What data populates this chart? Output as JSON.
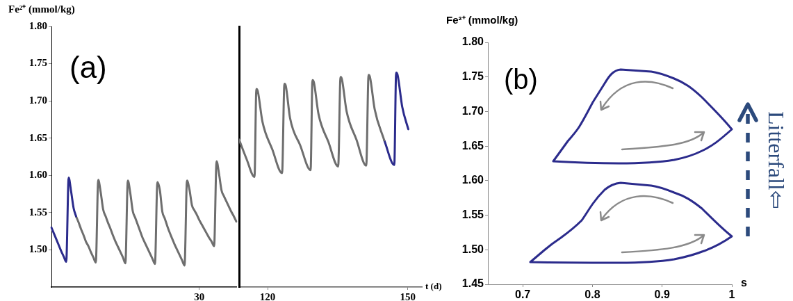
{
  "chart_data": [
    {
      "type": "line",
      "ylabel": "Fe²⁺ (mmol/kg)",
      "annotations": [
        "(a)"
      ],
      "categories": [
        null,
        null,
        null,
        null,
        null,
        null,
        null,
        null,
        null,
        null,
        null,
        null,
        null,
        null,
        null,
        null,
        null,
        null,
        null,
        null,
        null,
        null,
        null,
        null,
        null,
        null,
        null,
        null,
        null,
        null,
        null,
        null,
        null,
        null,
        null,
        null,
        null,
        null,
        null,
        null,
        null,
        null,
        null,
        null,
        null,
        null,
        null,
        null,
        null,
        null,
        null,
        null,
        null,
        null,
        null,
        null,
        null,
        null,
        null,
        null,
        "30",
        null,
        null,
        null,
        null,
        null,
        null,
        null,
        null,
        null,
        null,
        null,
        null,
        null,
        null,
        null
      ],
      "ylim": [
        1.45,
        1.8
      ],
      "yticks": [
        {
          "value": 1.5,
          "label": "1.50"
        },
        {
          "value": 1.55,
          "label": "1.55"
        },
        {
          "value": 1.6,
          "label": "1.60"
        },
        {
          "value": 1.65,
          "label": "1.65"
        },
        {
          "value": 1.7,
          "label": "1.70"
        },
        {
          "value": 1.75,
          "label": "1.75"
        },
        {
          "value": 1.8,
          "label": "1.80"
        }
      ],
      "grid": false,
      "legend": false,
      "marker": "none",
      "line_style": "solid",
      "series": [
        {
          "color": "#2b2b8c",
          "values": [
            1.53,
            1.522,
            1.514,
            1.506,
            1.498,
            1.491,
            1.484,
            1.597,
            1.578,
            1.556,
            1.545,
            null,
            null,
            null,
            null,
            null,
            null,
            null,
            null,
            null,
            null,
            null,
            null,
            null,
            null,
            null,
            null,
            null,
            null,
            null,
            null,
            null,
            null,
            null,
            null,
            null,
            null,
            null,
            null,
            null,
            null,
            null,
            null,
            null,
            null,
            null,
            null,
            null,
            null,
            null,
            null,
            null,
            null,
            null,
            null,
            null,
            null,
            null,
            null,
            null,
            null,
            null,
            null,
            null,
            null,
            null,
            null,
            null,
            null,
            null,
            null,
            null,
            null,
            null,
            null,
            null
          ]
        },
        {
          "color": "#6e6e6e",
          "values": [
            null,
            null,
            null,
            null,
            null,
            null,
            null,
            null,
            null,
            null,
            1.545,
            1.537,
            1.528,
            1.52,
            1.511,
            1.505,
            1.497,
            1.49,
            1.483,
            1.594,
            1.577,
            1.554,
            1.545,
            1.536,
            1.528,
            1.519,
            1.511,
            1.504,
            1.497,
            1.49,
            1.482,
            1.593,
            1.576,
            1.552,
            1.543,
            1.534,
            1.525,
            1.516,
            1.509,
            1.502,
            1.495,
            1.488,
            1.481,
            1.591,
            1.58,
            1.551,
            1.542,
            1.532,
            1.523,
            1.515,
            1.507,
            1.5,
            1.493,
            1.486,
            1.479,
            1.593,
            1.581,
            1.56,
            1.553,
            1.547,
            1.54,
            1.534,
            1.528,
            1.522,
            1.516,
            1.511,
            1.505,
            1.619,
            1.602,
            1.58,
            1.572,
            1.565,
            1.558,
            1.551,
            1.545,
            1.538
          ]
        }
      ]
    },
    {
      "type": "line",
      "xlabel": "t (d)",
      "xlim": [
        113.9,
        153
      ],
      "xticks": [
        120,
        150
      ],
      "ylim": [
        1.45,
        1.8
      ],
      "tick_labels": "x",
      "grid": false,
      "legend": false,
      "marker": "none",
      "line_style": "solid",
      "series": [
        {
          "color": "#6e6e6e",
          "x": [
            113.9,
            115.5,
            117.2,
            117.6,
            117.9,
            118.9,
            121.0,
            123.1,
            123.6,
            123.9,
            124.8,
            127.0,
            129.2,
            129.6,
            129.9,
            130.9,
            133.0,
            135.1,
            135.6,
            135.9,
            136.9,
            139.0,
            141.1,
            141.6,
            141.9,
            142.9,
            144.95
          ],
          "values": [
            1.648,
            1.622,
            1.598,
            1.716,
            1.713,
            1.672,
            1.635,
            1.603,
            1.723,
            1.72,
            1.677,
            1.64,
            1.607,
            1.728,
            1.725,
            1.682,
            1.645,
            1.612,
            1.732,
            1.729,
            1.686,
            1.648,
            1.613,
            1.735,
            1.732,
            1.689,
            1.647
          ]
        },
        {
          "color": "#2b2b8c",
          "x": [
            144.95,
            147.1,
            147.5,
            147.8,
            148.8,
            150.1
          ],
          "values": [
            1.647,
            1.614,
            1.738,
            1.735,
            1.692,
            1.662
          ]
        }
      ]
    },
    {
      "type": "line",
      "ylabel": "Fe²⁺ (mmol/kg)",
      "xlabel": "s",
      "annotations": [
        "(b)",
        "Litterfall⇦"
      ],
      "xlim": [
        0.65,
        1.0
      ],
      "xticks": [
        0.7,
        0.8,
        0.9,
        1
      ],
      "ylim": [
        1.45,
        1.8
      ],
      "yticks": [
        {
          "value": 1.45,
          "label": "1.45"
        },
        {
          "value": 1.5,
          "label": "1.50"
        },
        {
          "value": 1.55,
          "label": "1.55"
        },
        {
          "value": 1.6,
          "label": "1.60"
        },
        {
          "value": 1.65,
          "label": "1.65"
        },
        {
          "value": 1.7,
          "label": "1.70"
        },
        {
          "value": 1.75,
          "label": "1.75"
        },
        {
          "value": 1.8,
          "label": "1.80"
        }
      ],
      "grid": false,
      "legend": false
    }
  ]
}
